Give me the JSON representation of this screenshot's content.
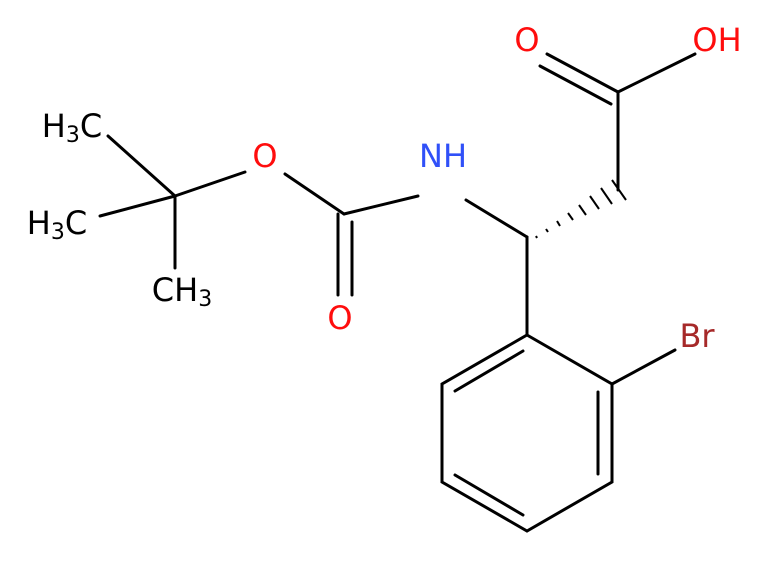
{
  "atoms": {
    "carbonyl_o_top": "O",
    "hydroxyl": "OH",
    "amine": "NH",
    "ester_o": "O",
    "carbonyl_o_bottom": "O",
    "methyl_1": "H3C",
    "methyl_2": "H3C",
    "methyl_3": "CH3",
    "bromine": "Br"
  }
}
